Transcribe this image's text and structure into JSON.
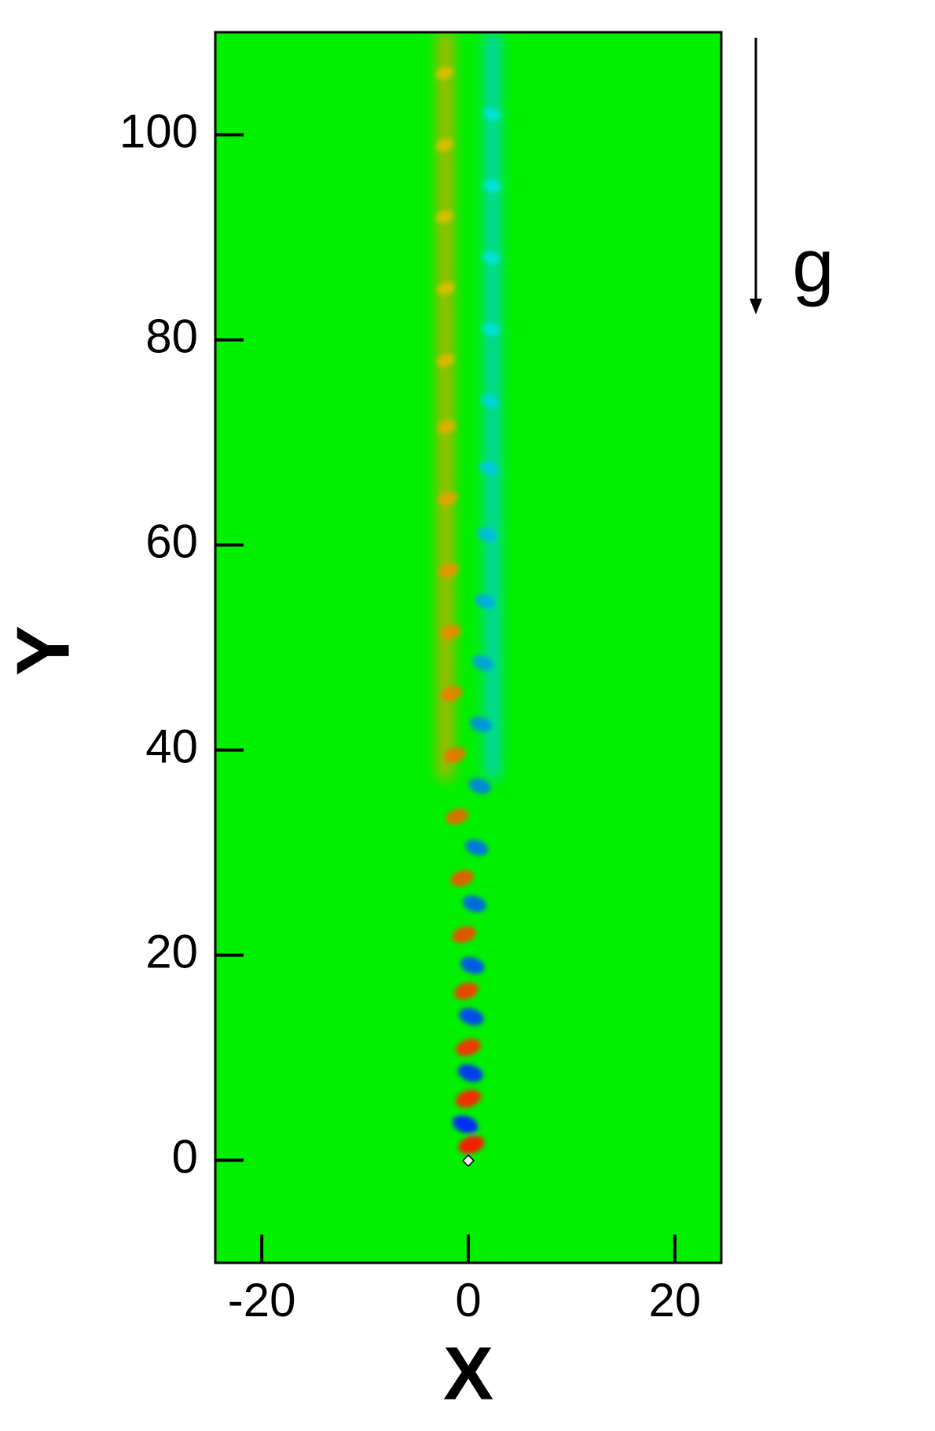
{
  "chart_data": {
    "type": "contour",
    "x_label": "X",
    "y_label": "Y",
    "annotation": "g",
    "xlim": [
      -24.5,
      24.5
    ],
    "ylim": [
      -10,
      110
    ],
    "xticks": [
      -20,
      0,
      20
    ],
    "yticks": [
      0,
      20,
      40,
      60,
      80,
      100
    ],
    "background": "#00f000",
    "series": [
      {
        "color": "#ff0000",
        "x": [
          0.3,
          0,
          0,
          -0.2,
          -0.4,
          -0.6,
          -1.1,
          -1.3,
          -1.6,
          -1.7,
          -1.9,
          -2.0,
          -2.1,
          -2.2,
          -2.2,
          -2.3,
          -2.3,
          -2.3
        ],
        "values": [
          1.5,
          6,
          11,
          16.5,
          22,
          27.5,
          33.5,
          39.5,
          45.5,
          51.5,
          57.5,
          64.5,
          71.5,
          78,
          85,
          92,
          99,
          106
        ]
      },
      {
        "color": "#0000ff",
        "x": [
          -0.3,
          0.2,
          0.3,
          0.4,
          0.6,
          0.8,
          1.1,
          1.2,
          1.4,
          1.6,
          1.8,
          2.0,
          2.1,
          2.2,
          2.2,
          2.3,
          2.3
        ],
        "values": [
          3.5,
          8.5,
          14,
          19,
          25,
          30.5,
          36.5,
          42.5,
          48.5,
          54.5,
          61,
          67.5,
          74,
          81,
          88,
          95,
          102
        ]
      }
    ]
  }
}
